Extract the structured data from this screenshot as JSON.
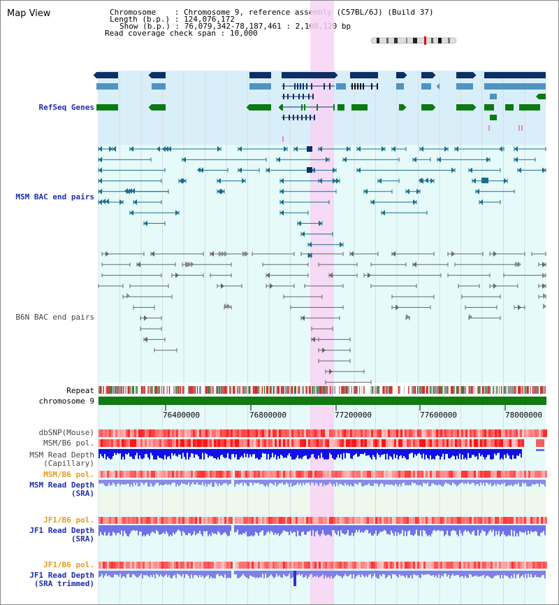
{
  "view": {
    "title": "Map View",
    "info": {
      "chromosome_label": "Chromosome",
      "chromosome_value": "Chromosome 9, reference assembly (C57BL/6J) (Build 37)",
      "length_label": "Length (b.p.)",
      "length_value": "124,076,172",
      "show_label": "Show (b.p.)",
      "show_value": "76,079,342-78,187,461 : 2,108,120 bp",
      "coverage_label": "Read coverage check span",
      "coverage_value": "10,000"
    }
  },
  "tracks": {
    "refseq": "RefSeq Genes",
    "msm_bac": "MSM BAC end pairs",
    "b6n_bac": "B6N BAC end pairs",
    "repeat": "Repeat",
    "chromosome": "chromosome 9",
    "dbsnp": "dbSNP(Mouse)",
    "msm_b6_pol": "MSM/B6 pol.",
    "msm_depth_cap_1": "MSM Read Depth",
    "msm_depth_cap_2": "(Capillary)",
    "msm_b6_pol2": "MSM/B6 pol.",
    "msm_depth_sra_1": "MSM Read Depth",
    "msm_depth_sra_2": "(SRA)",
    "jf1_b6_pol": "JF1/B6 pol.",
    "jf1_depth_sra_1": "JF1 Read Depth",
    "jf1_depth_sra_2": "(SRA)",
    "jf1_b6_pol2": "JF1/B6 pol.",
    "jf1_depth_trim_1": "JF1 Read Depth",
    "jf1_depth_trim_2": "(SRA trimmed)"
  },
  "axis": {
    "ticks": [
      "76400000",
      "76800000",
      "77200000",
      "77600000",
      "78000000"
    ]
  },
  "colors": {
    "highlight": "#f8d4f4",
    "refseq_bg": "#d8eef8",
    "lower_bg": "#e6fafa",
    "sra_bg": "#eef8ec",
    "gene_navy": "#0d2f66",
    "gene_light": "#4f93c0",
    "gene_green": "#0b7a10",
    "bac_msm": "#1a6f8a",
    "bac_b6n": "#666666",
    "chrom_bar": "#117a11"
  }
}
